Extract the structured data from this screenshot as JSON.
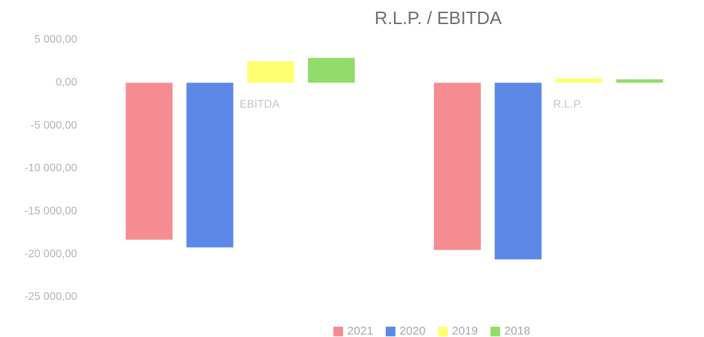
{
  "chart_data": {
    "type": "bar",
    "title": "R.L.P. / EBITDA",
    "categories": [
      "EBITDA",
      "R.L.P."
    ],
    "series": [
      {
        "name": "2021",
        "color": "#f58c91",
        "values": [
          -18300,
          -19500
        ]
      },
      {
        "name": "2020",
        "color": "#5c88e8",
        "values": [
          -19200,
          -20600
        ]
      },
      {
        "name": "2019",
        "color": "#ffff72",
        "values": [
          2500,
          500
        ]
      },
      {
        "name": "2018",
        "color": "#92dc6c",
        "values": [
          2900,
          400
        ]
      }
    ],
    "ylim": [
      -25000,
      5000
    ],
    "yticks": [
      {
        "value": 5000,
        "label": "5 000,00"
      },
      {
        "value": 0,
        "label": "0,00"
      },
      {
        "value": -5000,
        "label": "-5 000,00"
      },
      {
        "value": -10000,
        "label": "-10 000,00"
      },
      {
        "value": -15000,
        "label": "-15 000,00"
      },
      {
        "value": -20000,
        "label": "-20 000,00"
      },
      {
        "value": -25000,
        "label": "-25 000,00"
      }
    ],
    "legend": "bottom"
  }
}
